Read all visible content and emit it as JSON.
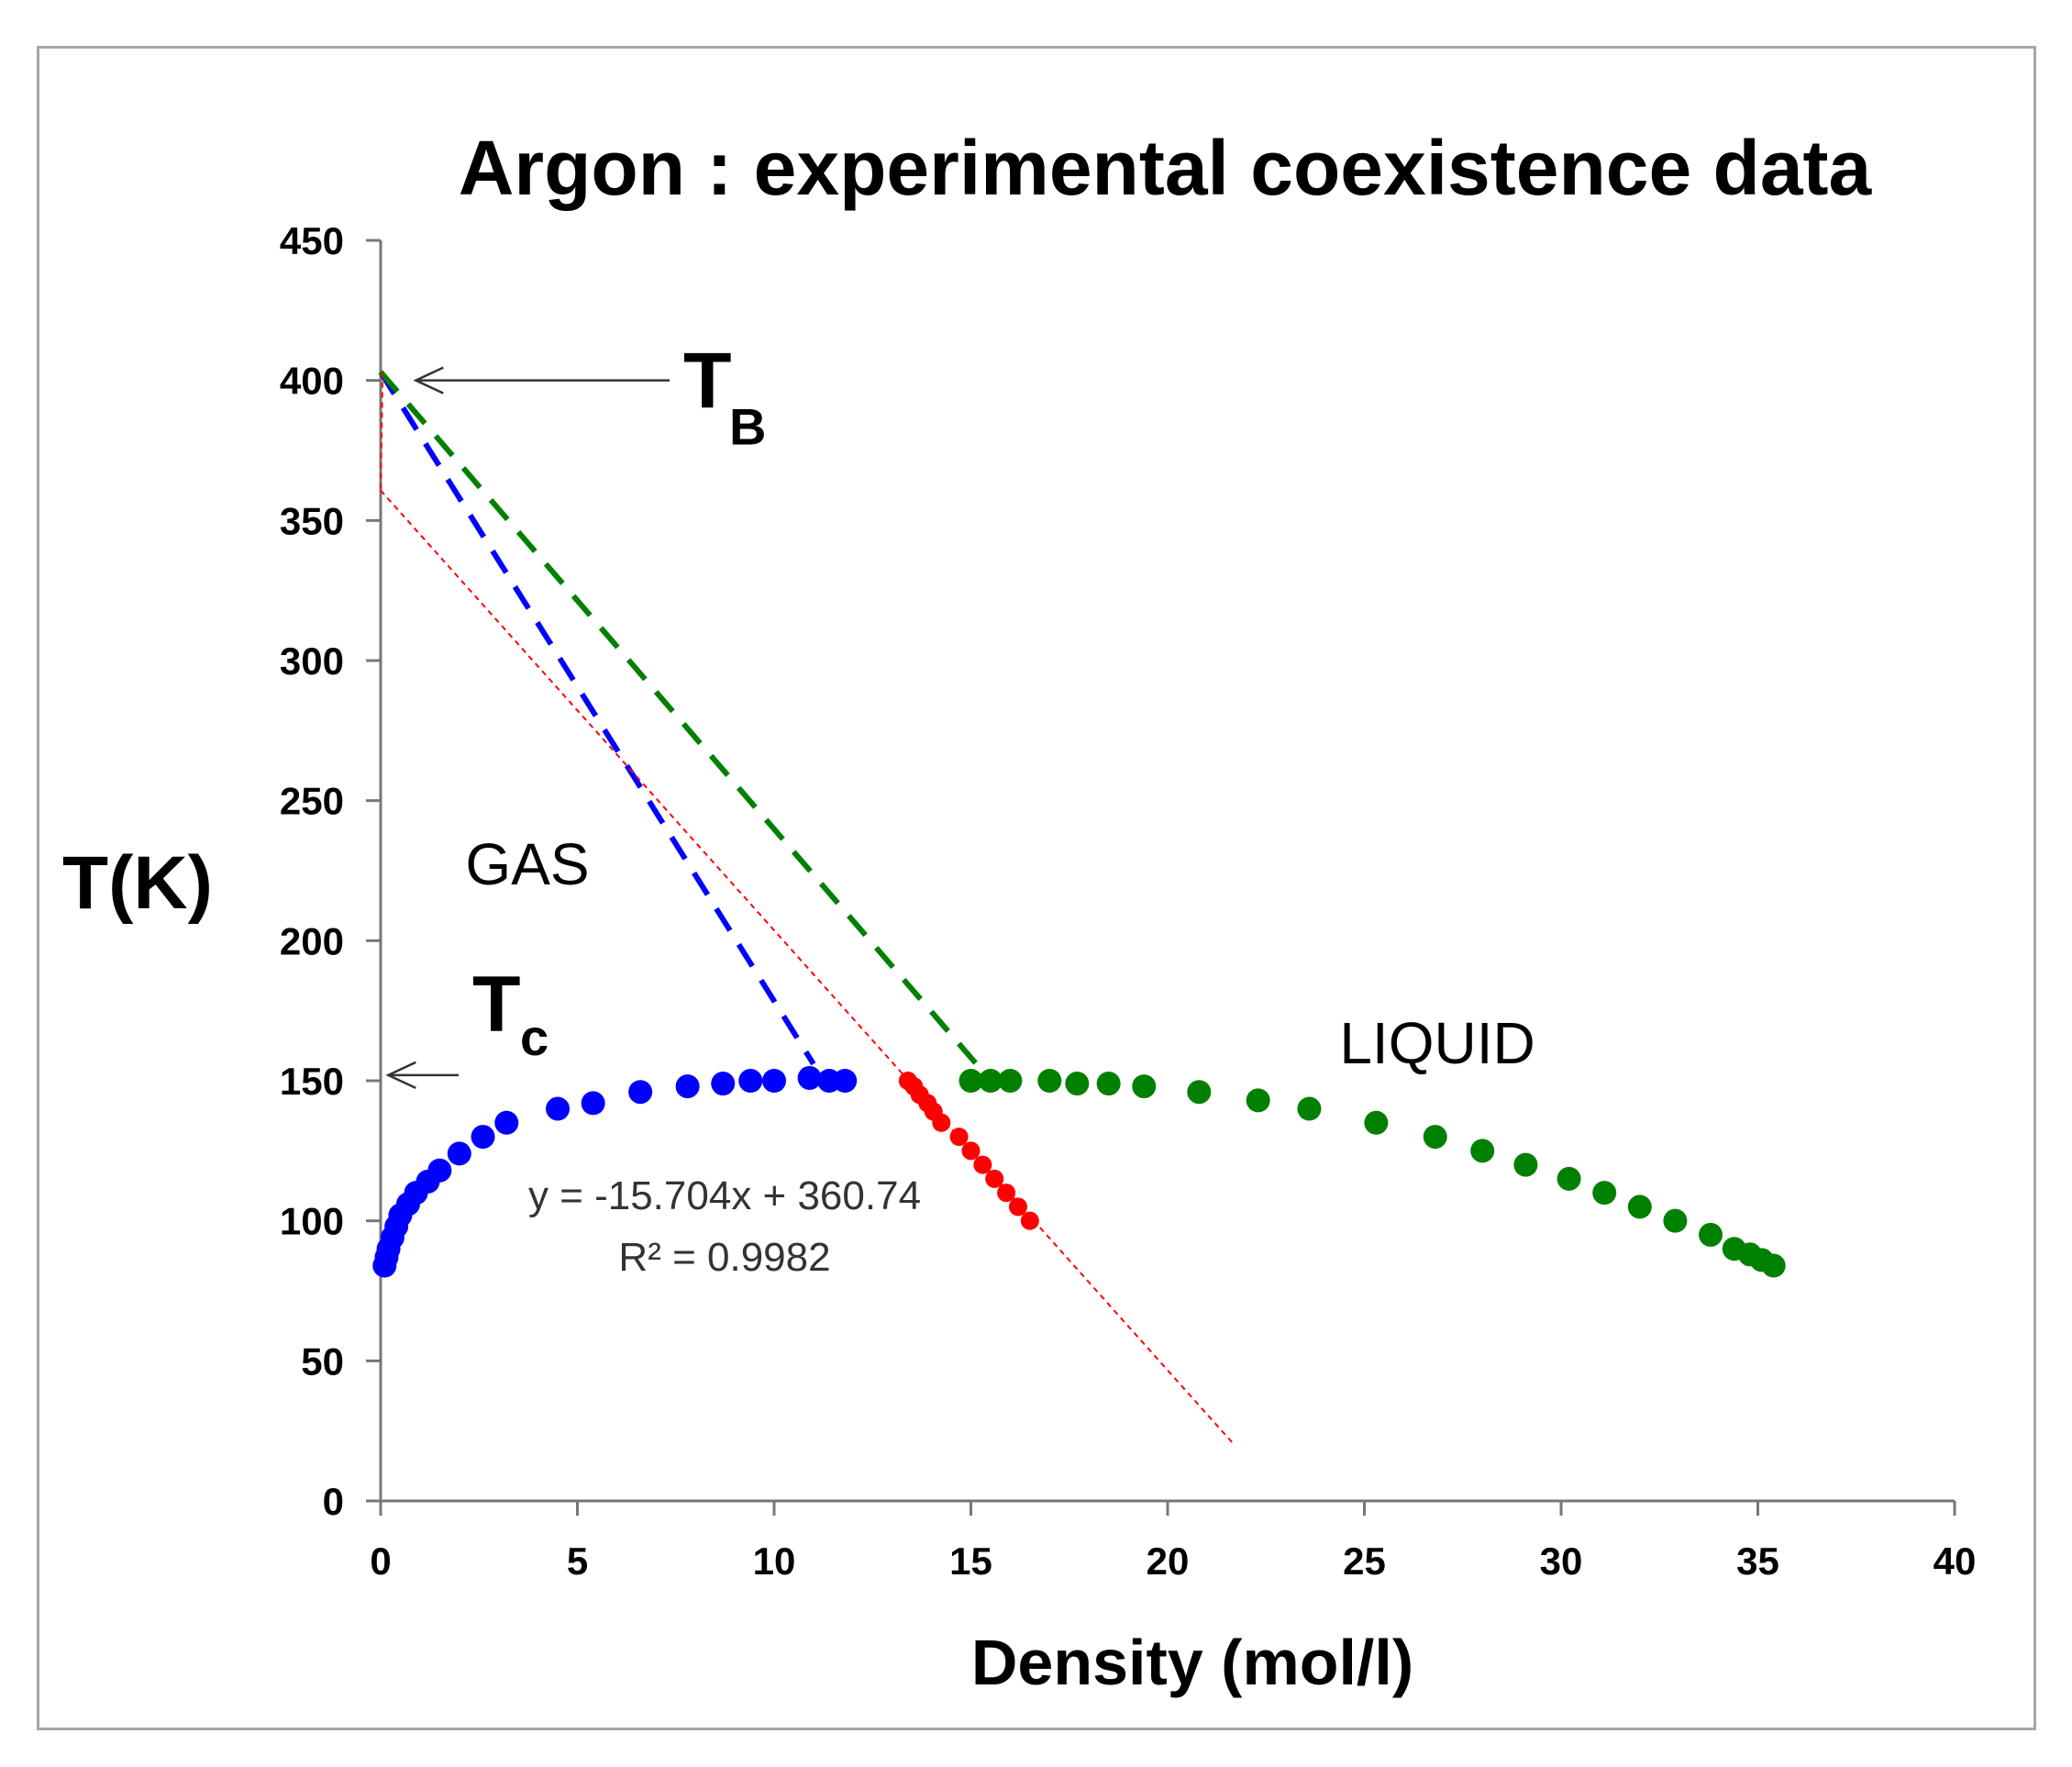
{
  "chart_data": {
    "type": "scatter",
    "title": "Argon : experimental coexistence data",
    "xlabel": "Density (mol/l)",
    "ylabel": "T(K)",
    "xlim": [
      0,
      40
    ],
    "ylim": [
      0,
      450
    ],
    "xticks": [
      0,
      5,
      10,
      15,
      20,
      25,
      30,
      35,
      40
    ],
    "yticks": [
      0,
      50,
      100,
      150,
      200,
      250,
      300,
      350,
      400,
      450
    ],
    "grid": false,
    "series": [
      {
        "name": "gas",
        "color": "#0000ff",
        "points": [
          [
            0.1,
            84
          ],
          [
            0.15,
            87
          ],
          [
            0.2,
            90
          ],
          [
            0.3,
            94
          ],
          [
            0.4,
            98
          ],
          [
            0.5,
            102
          ],
          [
            0.7,
            106
          ],
          [
            0.9,
            110
          ],
          [
            1.2,
            114
          ],
          [
            1.5,
            118
          ],
          [
            2.0,
            124
          ],
          [
            2.6,
            130
          ],
          [
            3.2,
            135
          ],
          [
            4.5,
            140
          ],
          [
            5.4,
            142
          ],
          [
            6.6,
            146
          ],
          [
            7.8,
            148
          ],
          [
            8.7,
            149
          ],
          [
            9.4,
            150
          ],
          [
            10.0,
            150
          ],
          [
            10.9,
            151
          ],
          [
            11.4,
            150
          ],
          [
            11.8,
            150
          ]
        ]
      },
      {
        "name": "fit",
        "color": "#ff0000",
        "points": [
          [
            13.4,
            150
          ],
          [
            13.55,
            148
          ],
          [
            13.7,
            145
          ],
          [
            13.9,
            142
          ],
          [
            14.05,
            139
          ],
          [
            14.25,
            135
          ],
          [
            14.7,
            130
          ],
          [
            15.0,
            125
          ],
          [
            15.3,
            120
          ],
          [
            15.6,
            115
          ],
          [
            15.9,
            110
          ],
          [
            16.2,
            105
          ],
          [
            16.5,
            100
          ]
        ]
      },
      {
        "name": "liquid",
        "color": "#008000",
        "points": [
          [
            15.0,
            150
          ],
          [
            15.5,
            150
          ],
          [
            16.0,
            150
          ],
          [
            17.0,
            150
          ],
          [
            17.7,
            149
          ],
          [
            18.5,
            149
          ],
          [
            19.4,
            148
          ],
          [
            20.8,
            146
          ],
          [
            22.3,
            143
          ],
          [
            23.6,
            140
          ],
          [
            25.3,
            135
          ],
          [
            26.8,
            130
          ],
          [
            28.0,
            125
          ],
          [
            29.1,
            120
          ],
          [
            30.2,
            115
          ],
          [
            31.1,
            110
          ],
          [
            32.0,
            105
          ],
          [
            32.9,
            100
          ],
          [
            33.8,
            95
          ],
          [
            34.4,
            90
          ],
          [
            34.8,
            88
          ],
          [
            35.1,
            86
          ],
          [
            35.4,
            84
          ]
        ]
      }
    ],
    "fit_line": {
      "slope": -15.704,
      "intercept": 360.74,
      "color": "#ff0000",
      "x_range": [
        0,
        21.7
      ],
      "equation": "y = -15.704x + 360.74",
      "r_squared": "R² = 0.9982"
    },
    "guide_lines": [
      {
        "name": "blue-dashed",
        "color": "#0000ff",
        "from": [
          0,
          403
        ],
        "to": [
          11,
          156
        ]
      },
      {
        "name": "green-dashed",
        "color": "#008000",
        "from": [
          0,
          403
        ],
        "to": [
          15.2,
          155
        ]
      }
    ],
    "annotations": {
      "tb_label": "T",
      "tb_sub": "B",
      "tb_at": [
        0.8,
        400
      ],
      "tc_label": "T",
      "tc_sub": "c",
      "tc_at": [
        0.1,
        152
      ],
      "gas_label": "GAS",
      "liquid_label": "LIQUID"
    }
  }
}
